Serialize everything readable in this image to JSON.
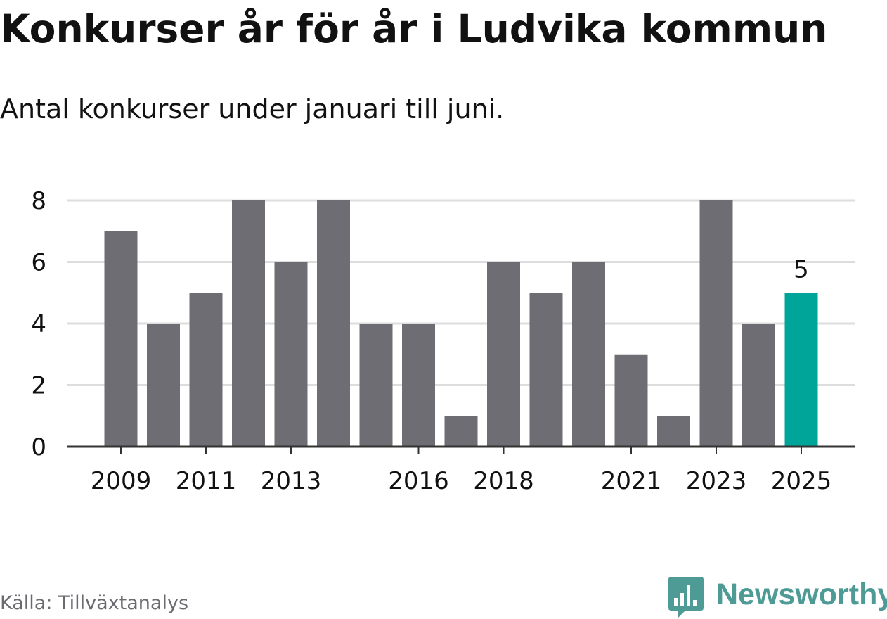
{
  "title": "Konkurser år för år i Ludvika kommun",
  "subtitle": "Antal konkurser under januari till juni.",
  "source": "Källa: Tillväxtanalys",
  "brand": {
    "name": "Newsworthy",
    "color": "#4e9b96",
    "icon": "newsworthy-bar-chart-logo-icon"
  },
  "colors": {
    "bar": "#6e6d73",
    "highlight": "#00a599",
    "grid": "#dddddd",
    "axis": "#333333",
    "text": "#111111"
  },
  "chart_data": {
    "type": "bar",
    "title": "Konkurser år för år i Ludvika kommun",
    "subtitle": "Antal konkurser under januari till juni.",
    "x": [
      2009,
      2010,
      2011,
      2012,
      2013,
      2014,
      2015,
      2016,
      2017,
      2018,
      2019,
      2020,
      2021,
      2022,
      2023,
      2024,
      2025
    ],
    "values": [
      7,
      4,
      5,
      8,
      6,
      8,
      4,
      4,
      1,
      6,
      5,
      6,
      3,
      1,
      8,
      4,
      5
    ],
    "x_tick_labels": [
      "2009",
      "2011",
      "2013",
      "2016",
      "2018",
      "2021",
      "2023",
      "2025"
    ],
    "y_ticks": [
      0,
      2,
      4,
      6,
      8
    ],
    "ylim": [
      0,
      8
    ],
    "grid": true,
    "highlight": {
      "x": 2025,
      "label": "5"
    }
  }
}
